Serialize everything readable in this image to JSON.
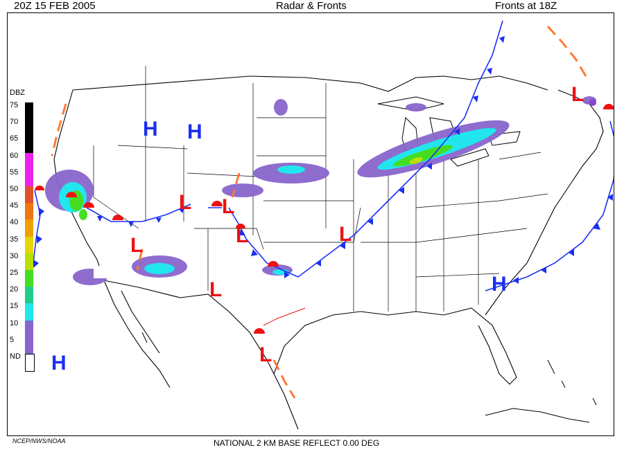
{
  "header": {
    "time": "20Z  15 FEB  2005",
    "title": "Radar & Fronts",
    "fronts_time": "Fronts at 18Z"
  },
  "legend": {
    "title": "DBZ",
    "items": [
      {
        "label": "75",
        "color": "#000000"
      },
      {
        "label": "70",
        "color": "#000000"
      },
      {
        "label": "65",
        "color": "#000000"
      },
      {
        "label": "60",
        "color": "#ee22ee"
      },
      {
        "label": "55",
        "color": "#ee22ee"
      },
      {
        "label": "50",
        "color": "#e0502a"
      },
      {
        "label": "45",
        "color": "#ee7711"
      },
      {
        "label": "40",
        "color": "#f0a000"
      },
      {
        "label": "35",
        "color": "#e4d800"
      },
      {
        "label": "30",
        "color": "#b8e000"
      },
      {
        "label": "25",
        "color": "#44dd22"
      },
      {
        "label": "20",
        "color": "#22cc88"
      },
      {
        "label": "15",
        "color": "#22e6ee"
      },
      {
        "label": "10",
        "color": "#8866cc"
      },
      {
        "label": "5",
        "color": "#8866cc"
      },
      {
        "label": "ND",
        "color": "#ffffff"
      }
    ]
  },
  "pressure_systems": [
    {
      "type": "H",
      "id": "pacific"
    },
    {
      "type": "H",
      "id": "montana-1"
    },
    {
      "type": "H",
      "id": "montana-2"
    },
    {
      "type": "H",
      "id": "southeast"
    },
    {
      "type": "L",
      "id": "colorado"
    },
    {
      "type": "L",
      "id": "kansas-west"
    },
    {
      "type": "L",
      "id": "oklahoma-panhandle"
    },
    {
      "type": "L",
      "id": "missouri"
    },
    {
      "type": "L",
      "id": "arizona"
    },
    {
      "type": "L",
      "id": "new-mexico"
    },
    {
      "type": "L",
      "id": "south-texas"
    },
    {
      "type": "L",
      "id": "maine"
    }
  ],
  "colors": {
    "cold_front": "#1b2ff0",
    "warm_front": "#ee1111",
    "trough": "#ff7733",
    "occluded": "#8844cc"
  },
  "footer": {
    "source": "NCEP/NWS/NOAA",
    "product": "NATIONAL 2 KM BASE REFLECT 0.00 DEG"
  }
}
